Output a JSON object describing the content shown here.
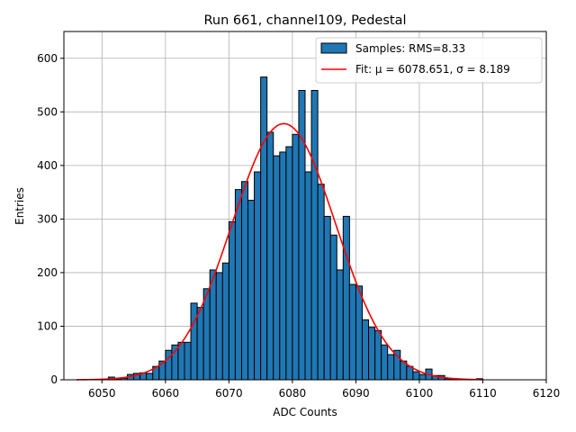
{
  "chart_data": {
    "type": "bar",
    "title": "Run 661, channel109, Pedestal",
    "xlabel": "ADC Counts",
    "ylabel": "Entries",
    "xlim": [
      6044,
      6120
    ],
    "ylim": [
      0,
      650
    ],
    "xticks": [
      6050,
      6060,
      6070,
      6080,
      6090,
      6100,
      6110,
      6120
    ],
    "yticks": [
      0,
      100,
      200,
      300,
      400,
      500,
      600
    ],
    "grid": true,
    "legend_position": "top-right",
    "bin_width": 1,
    "series": [
      {
        "name": "Samples: RMS=8.33",
        "kind": "histogram",
        "color": "#1f77b4",
        "edgecolor": "#000000",
        "bin_starts": [
          6051,
          6052,
          6053,
          6054,
          6055,
          6056,
          6057,
          6058,
          6059,
          6060,
          6061,
          6062,
          6063,
          6064,
          6065,
          6066,
          6067,
          6068,
          6069,
          6070,
          6071,
          6072,
          6073,
          6074,
          6075,
          6076,
          6077,
          6078,
          6079,
          6080,
          6081,
          6082,
          6083,
          6084,
          6085,
          6086,
          6087,
          6088,
          6089,
          6090,
          6091,
          6092,
          6093,
          6094,
          6095,
          6096,
          6097,
          6098,
          6099,
          6100,
          6101,
          6102,
          6103,
          6104,
          6105,
          6109
        ],
        "counts": [
          5,
          2,
          3,
          10,
          12,
          13,
          12,
          25,
          35,
          55,
          65,
          70,
          70,
          143,
          135,
          170,
          205,
          200,
          218,
          295,
          355,
          370,
          335,
          388,
          565,
          462,
          418,
          425,
          435,
          458,
          540,
          388,
          540,
          365,
          305,
          270,
          205,
          305,
          178,
          175,
          112,
          98,
          92,
          65,
          47,
          55,
          35,
          25,
          15,
          10,
          20,
          8,
          8,
          2,
          2,
          2
        ]
      },
      {
        "name": "Fit: μ = 6078.651, σ = 8.189",
        "kind": "gaussian-fit",
        "color": "#ff0000",
        "mu": 6078.651,
        "sigma": 8.189,
        "amplitude": 478,
        "x_range": [
          6046,
          6110
        ]
      }
    ]
  }
}
